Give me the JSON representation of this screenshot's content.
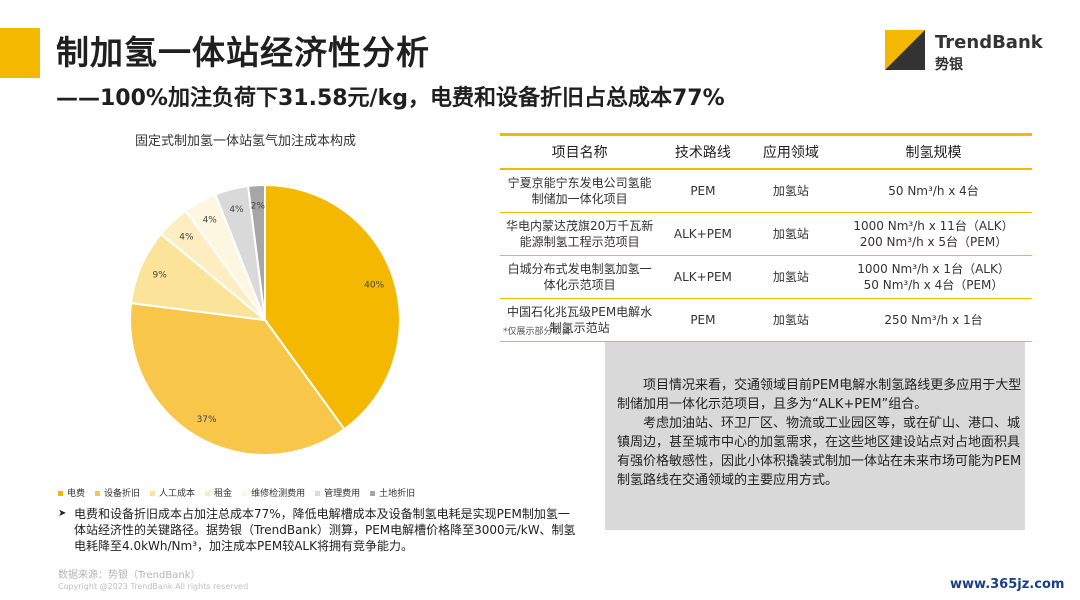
{
  "header": {
    "title": "制加氢一体站经济性分析",
    "subtitle": "——100%加注负荷下31.58元/kg，电费和设备折旧占总成本77%"
  },
  "logo": {
    "name": "TrendBank",
    "cn": "势银",
    "color": "#f5b800"
  },
  "chart_data": {
    "type": "pie",
    "title": "固定式制加氢一体站氢气加注成本构成",
    "slices": [
      {
        "name": "电费",
        "value": 40,
        "label": "40%",
        "color": "#f5b800"
      },
      {
        "name": "设备折旧",
        "value": 37,
        "label": "37%",
        "color": "#f8c74a"
      },
      {
        "name": "人工成本",
        "value": 9,
        "label": "9%",
        "color": "#fbe39a"
      },
      {
        "name": "租金",
        "value": 4,
        "label": "4%",
        "color": "#fdedc0"
      },
      {
        "name": "维修检测费用",
        "value": 4,
        "label": "4%",
        "color": "#fdf6e0"
      },
      {
        "name": "管理费用",
        "value": 4,
        "label": "4%",
        "color": "#d9d9d9"
      },
      {
        "name": "土地折旧",
        "value": 2,
        "label": "2%",
        "color": "#a6a6a6"
      }
    ],
    "legend_position": "bottom"
  },
  "left_note": {
    "bullet": "➤",
    "text": "电费和设备折旧成本占加注总成本77%，降低电解槽成本及设备制氢电耗是实现PEM制加氢一体站经济性的关键路径。据势银（TrendBank）测算，PEM电解槽价格降至3000元/kW、制氢电耗降至4.0kWh/Nm³，加注成本PEM较ALK将拥有竞争能力。"
  },
  "source": "数据来源：势银（TrendBank）",
  "copyright": "Copyright @2023 TrendBank All rights reserved",
  "table": {
    "headers": [
      "项目名称",
      "技术路线",
      "应用领域",
      "制氢规模"
    ],
    "rows": [
      {
        "name": "宁夏京能宁东发电公司氢能制储加一体化项目",
        "tech": "PEM",
        "field": "加氢站",
        "scale": [
          "50 Nm³/h x 4台"
        ]
      },
      {
        "name": "华电内蒙达茂旗20万千瓦新能源制氢工程示范项目",
        "tech": "ALK+PEM",
        "field": "加氢站",
        "scale": [
          "1000 Nm³/h x 11台（ALK）",
          "200 Nm³/h x 5台（PEM）"
        ]
      },
      {
        "name": "白城分布式发电制氢加氢一体化示范项目",
        "tech": "ALK+PEM",
        "field": "加氢站",
        "scale": [
          "1000 Nm³/h x 1台（ALK）",
          "50 Nm³/h x 4台（PEM）"
        ]
      },
      {
        "name": "中国石化兆瓦级PEM电解水制氢示范站",
        "tech": "PEM",
        "field": "加氢站",
        "scale": [
          "250 Nm³/h x 1台"
        ]
      }
    ],
    "footnote": "*仅展示部分项目"
  },
  "analysis": {
    "p1": "项目情况来看，交通领域目前PEM电解水制氢路线更多应用于大型制储加用一体化示范项目，且多为“ALK+PEM”组合。",
    "p2": "考虑加油站、环卫厂区、物流或工业园区等，或在矿山、港口、城镇周边，甚至城市中心的加氢需求，在这些地区建设站点对占地面积具有强价格敏感性，因此小体积撬装式制加一体站在未来市场可能为PEM制氢路线在交通领域的主要应用方式。"
  },
  "watermark": "www.365jz.com"
}
